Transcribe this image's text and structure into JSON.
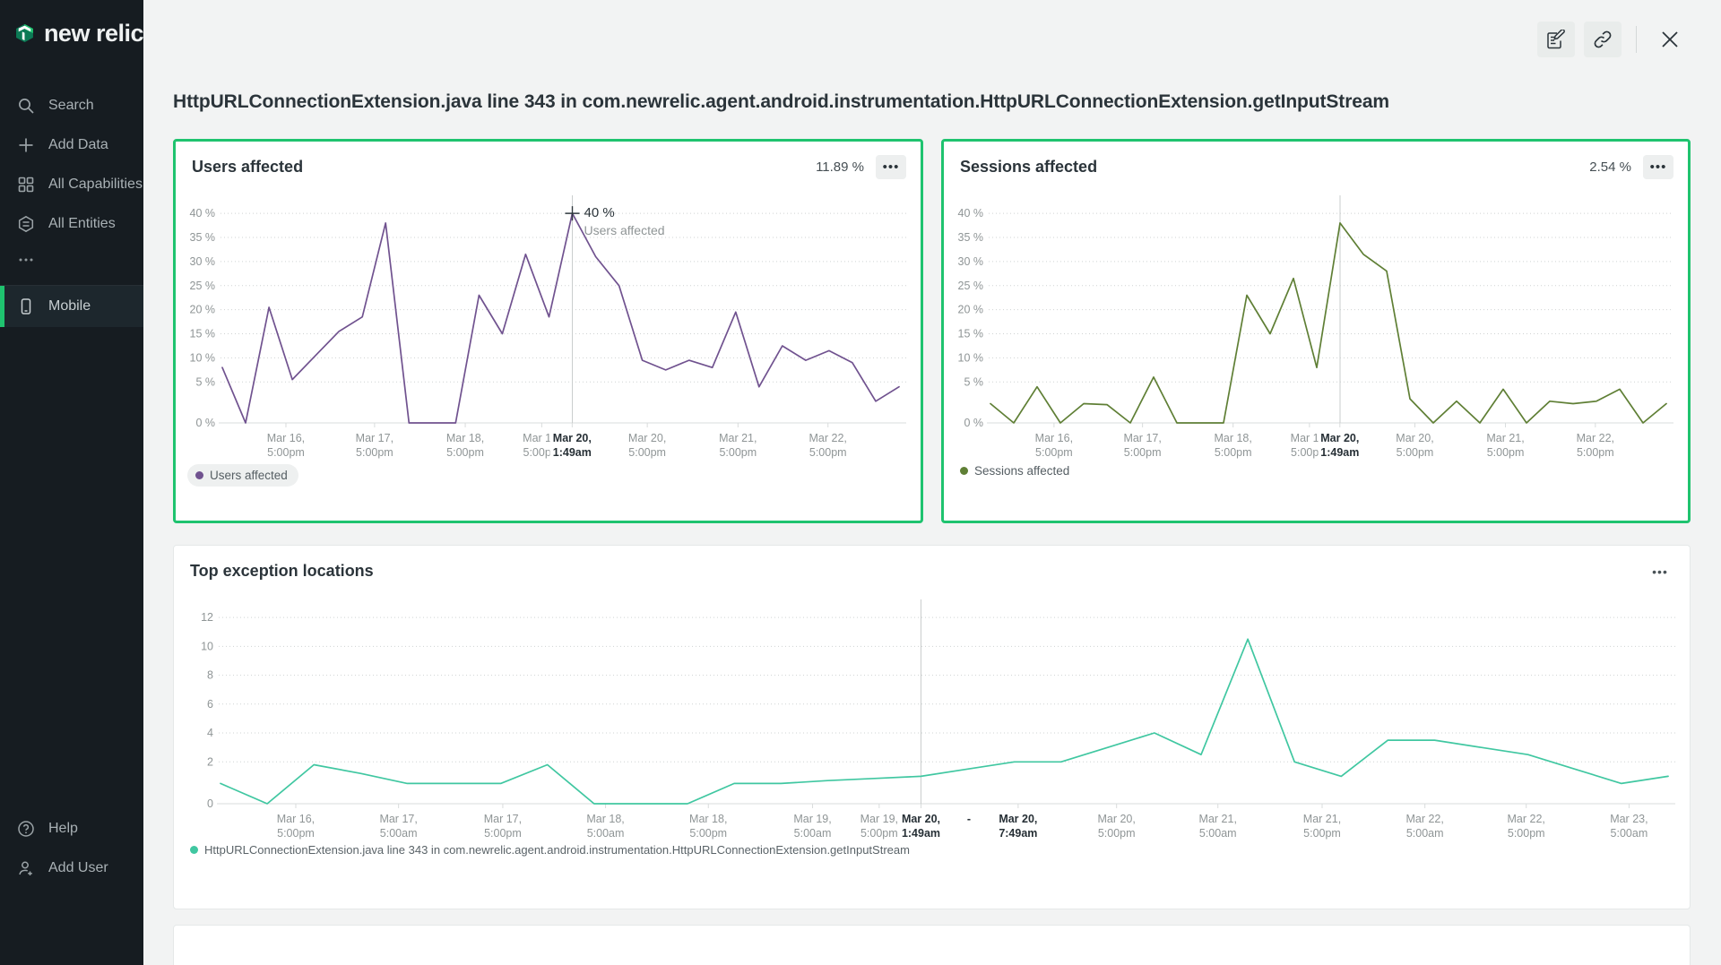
{
  "app": {
    "logo_text": "new relic"
  },
  "colors": {
    "accent_green": "#1fc36f",
    "users_line": "#70528f",
    "sessions_line": "#5f7f35",
    "locations_line": "#40c7a1",
    "sidebar_bg": "#161c21",
    "panel_bg": "#f2f3f3"
  },
  "sidebar": {
    "items": [
      {
        "label": "Search",
        "icon": "search-icon"
      },
      {
        "label": "Add Data",
        "icon": "plus-icon"
      },
      {
        "label": "All Capabilities",
        "icon": "grid-icon"
      },
      {
        "label": "All Entities",
        "icon": "hexagon-list-icon"
      },
      {
        "label": "…",
        "icon": "ellipsis-icon"
      }
    ],
    "selected": {
      "label": "Mobile",
      "icon": "mobile-icon"
    },
    "footer": [
      {
        "label": "Help",
        "icon": "help-icon"
      },
      {
        "label": "Add User",
        "icon": "add-user-icon"
      }
    ]
  },
  "header": {
    "title": "HttpURLConnectionExtension.java line 343 in com.newrelic.agent.android.instrumentation.HttpURLConnectionExtension.getInputStream"
  },
  "cards": {
    "users": {
      "title": "Users affected",
      "value": "11.89 %",
      "menu": "•••",
      "legend": "Users affected"
    },
    "sessions": {
      "title": "Sessions affected",
      "value": "2.54 %",
      "menu": "•••",
      "legend": "Sessions affected"
    },
    "locations": {
      "title": "Top exception locations",
      "menu": "•••",
      "legend": "HttpURLConnectionExtension.java line 343 in com.newrelic.agent.android.instrumentation.HttpURLConnectionExtension.getInputStream"
    }
  },
  "chart_data": [
    {
      "id": "users",
      "type": "line",
      "title": "Users affected",
      "color": "#70528f",
      "ylim": [
        -3.5,
        43
      ],
      "grid": true,
      "legend_position": "bottom",
      "yticks": [
        {
          "v": 0,
          "label": "0 %"
        },
        {
          "v": 5,
          "label": "5 %"
        },
        {
          "v": 10,
          "label": "10 %"
        },
        {
          "v": 15,
          "label": "15 %"
        },
        {
          "v": 20,
          "label": "20 %"
        },
        {
          "v": 25,
          "label": "25 %"
        },
        {
          "v": 30,
          "label": "30 %"
        },
        {
          "v": 35,
          "label": "35 %"
        },
        {
          "v": 40,
          "label": "40 %"
        }
      ],
      "values": [
        8,
        0,
        20.5,
        5.5,
        10.5,
        15.5,
        18.5,
        38,
        0,
        0,
        0,
        23,
        15,
        31.5,
        18.5,
        40,
        31,
        25,
        9.5,
        7.5,
        9.5,
        8,
        19.5,
        4,
        12.5,
        9.5,
        11.5,
        9,
        1,
        4
      ],
      "hover_index": 15,
      "tooltip": {
        "value": "40 %",
        "label": "Users affected"
      },
      "xticks": [
        {
          "f": 0.094,
          "l1": "Mar 16,",
          "l2": "5:00pm"
        },
        {
          "f": 0.225,
          "l1": "Mar 17,",
          "l2": "5:00pm"
        },
        {
          "f": 0.359,
          "l1": "Mar 18,",
          "l2": "5:00pm"
        },
        {
          "f": 0.472,
          "l1": "Mar 19,",
          "l2": "5:00pm"
        },
        {
          "f": 0.517,
          "l1": "Mar 20,",
          "l2": "1:49am",
          "bold": true
        },
        {
          "f": 0.628,
          "l1": "Mar 20,",
          "l2": "5:00pm"
        },
        {
          "f": 0.762,
          "l1": "Mar 21,",
          "l2": "5:00pm"
        },
        {
          "f": 0.895,
          "l1": "Mar 22,",
          "l2": "5:00pm"
        }
      ]
    },
    {
      "id": "sessions",
      "type": "line",
      "title": "Sessions affected",
      "color": "#5f7f35",
      "ylim": [
        -3.5,
        43
      ],
      "grid": true,
      "legend_position": "bottom",
      "yticks": [
        {
          "v": 0,
          "label": "0 %"
        },
        {
          "v": 5,
          "label": "5 %"
        },
        {
          "v": 10,
          "label": "10 %"
        },
        {
          "v": 15,
          "label": "15 %"
        },
        {
          "v": 20,
          "label": "20 %"
        },
        {
          "v": 25,
          "label": "25 %"
        },
        {
          "v": 30,
          "label": "30 %"
        },
        {
          "v": 35,
          "label": "35 %"
        },
        {
          "v": 40,
          "label": "40 %"
        }
      ],
      "values": [
        0.5,
        0,
        4,
        0,
        0.5,
        0.3,
        0,
        6,
        0,
        0,
        0,
        23,
        15,
        26.5,
        8,
        38,
        31.5,
        28,
        1.5,
        0,
        1,
        0,
        3.5,
        0,
        1,
        0.5,
        1,
        3.5,
        0,
        0.5
      ],
      "hover_index": 15,
      "xticks": [
        {
          "f": 0.094,
          "l1": "Mar 16,",
          "l2": "5:00pm"
        },
        {
          "f": 0.225,
          "l1": "Mar 17,",
          "l2": "5:00pm"
        },
        {
          "f": 0.359,
          "l1": "Mar 18,",
          "l2": "5:00pm"
        },
        {
          "f": 0.472,
          "l1": "Mar 19,",
          "l2": "5:00pm"
        },
        {
          "f": 0.517,
          "l1": "Mar 20,",
          "l2": "1:49am",
          "bold": true
        },
        {
          "f": 0.628,
          "l1": "Mar 20,",
          "l2": "5:00pm"
        },
        {
          "f": 0.762,
          "l1": "Mar 21,",
          "l2": "5:00pm"
        },
        {
          "f": 0.895,
          "l1": "Mar 22,",
          "l2": "5:00pm"
        }
      ]
    },
    {
      "id": "locations",
      "type": "line",
      "title": "Top exception locations",
      "color": "#40c7a1",
      "ylim": [
        -0.9,
        13
      ],
      "grid": true,
      "legend_position": "bottom",
      "yticks": [
        {
          "v": 0,
          "label": "0"
        },
        {
          "v": 2,
          "label": "2"
        },
        {
          "v": 4,
          "label": "4"
        },
        {
          "v": 6,
          "label": "6"
        },
        {
          "v": 8,
          "label": "8"
        },
        {
          "v": 10,
          "label": "10"
        },
        {
          "v": 12,
          "label": "12"
        }
      ],
      "values": [
        0.5,
        0,
        1.8,
        1.2,
        0.5,
        0.5,
        0.5,
        1.8,
        0,
        0,
        0,
        0.5,
        0.5,
        0.7,
        0.85,
        1,
        1.5,
        2,
        2,
        3,
        4,
        2.5,
        10.5,
        2,
        1,
        3.5,
        3.5,
        3,
        2.5,
        1.5,
        0.5,
        1
      ],
      "hover_index": 15,
      "xticks": [
        {
          "f": 0.052,
          "l1": "Mar 16,",
          "l2": "5:00pm"
        },
        {
          "f": 0.123,
          "l1": "Mar 17,",
          "l2": "5:00am"
        },
        {
          "f": 0.195,
          "l1": "Mar 17,",
          "l2": "5:00pm"
        },
        {
          "f": 0.266,
          "l1": "Mar 18,",
          "l2": "5:00am"
        },
        {
          "f": 0.337,
          "l1": "Mar 18,",
          "l2": "5:00pm"
        },
        {
          "f": 0.409,
          "l1": "Mar 19,",
          "l2": "5:00am"
        },
        {
          "f": 0.455,
          "l1": "Mar 19,",
          "l2": "5:00pm"
        },
        {
          "f": 0.4839,
          "l1": "Mar 20,",
          "l2": "1:49am",
          "bold": true
        },
        {
          "f": 0.517,
          "l1": "-",
          "l2": "",
          "bold": true,
          "dash": true
        },
        {
          "f": 0.551,
          "l1": "Mar 20,",
          "l2": "7:49am",
          "bold": true
        },
        {
          "f": 0.619,
          "l1": "Mar 20,",
          "l2": "5:00pm"
        },
        {
          "f": 0.689,
          "l1": "Mar 21,",
          "l2": "5:00am"
        },
        {
          "f": 0.761,
          "l1": "Mar 21,",
          "l2": "5:00pm"
        },
        {
          "f": 0.832,
          "l1": "Mar 22,",
          "l2": "5:00am"
        },
        {
          "f": 0.902,
          "l1": "Mar 22,",
          "l2": "5:00pm"
        },
        {
          "f": 0.973,
          "l1": "Mar 23,",
          "l2": "5:00am"
        }
      ]
    }
  ]
}
